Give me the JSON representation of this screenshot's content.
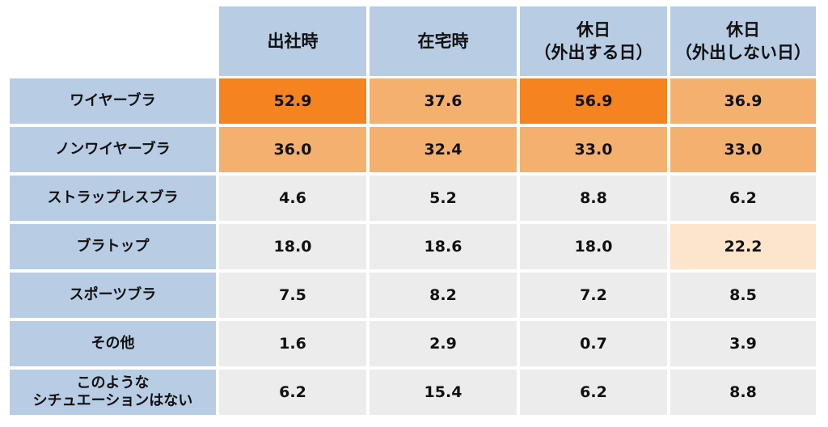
{
  "chart_data": {
    "type": "table",
    "columns": [
      "出社時",
      "在宅時",
      "休日\n（外出する日）",
      "休日\n（外出しない日）"
    ],
    "rows": [
      {
        "label": "ワイヤーブラ",
        "values": [
          "52.9",
          "37.6",
          "56.9",
          "36.9"
        ],
        "levels": [
          "strong",
          "mid",
          "strong",
          "mid"
        ]
      },
      {
        "label": "ノンワイヤーブラ",
        "values": [
          "36.0",
          "32.4",
          "33.0",
          "33.0"
        ],
        "levels": [
          "mid",
          "mid",
          "mid",
          "mid"
        ]
      },
      {
        "label": "ストラップレスブラ",
        "values": [
          "4.6",
          "5.2",
          "8.8",
          "6.2"
        ],
        "levels": [
          "none",
          "none",
          "none",
          "none"
        ]
      },
      {
        "label": "ブラトップ",
        "values": [
          "18.0",
          "18.6",
          "18.0",
          "22.2"
        ],
        "levels": [
          "none",
          "none",
          "none",
          "light"
        ]
      },
      {
        "label": "スポーツブラ",
        "values": [
          "7.5",
          "8.2",
          "7.2",
          "8.5"
        ],
        "levels": [
          "none",
          "none",
          "none",
          "none"
        ]
      },
      {
        "label": "その他",
        "values": [
          "1.6",
          "2.9",
          "0.7",
          "3.9"
        ],
        "levels": [
          "none",
          "none",
          "none",
          "none"
        ]
      },
      {
        "label": "このような\nシチュエーションはない",
        "values": [
          "6.2",
          "15.4",
          "6.2",
          "8.8"
        ],
        "levels": [
          "none",
          "none",
          "none",
          "none"
        ]
      }
    ]
  },
  "colors": {
    "header_bg": "#b8cce4",
    "highlight_strong": "#f5831f",
    "highlight_mid": "#f4b06e",
    "highlight_light": "#fde4cc",
    "cell_default": "#ececec"
  }
}
